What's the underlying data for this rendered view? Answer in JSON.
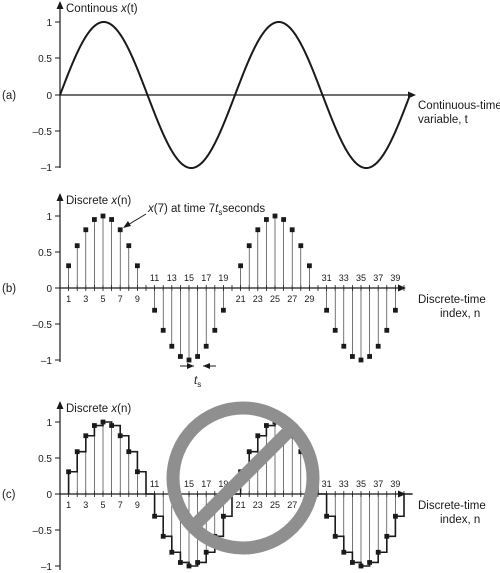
{
  "colors": {
    "ink": "#1a1a1a",
    "no_symbol": "#8f8f8f"
  },
  "panel_a": {
    "label": "(a)",
    "title_prefix": "Continous ",
    "title_var": "x",
    "title_arg": "(t)",
    "x_axis_line1": "Continuous-time",
    "x_axis_line2": "variable, t",
    "yticks": [
      "1",
      "0.5",
      "0",
      "–0.5",
      "–1"
    ]
  },
  "panel_b": {
    "label": "(b)",
    "title_prefix": "Discrete ",
    "title_var": "x",
    "title_arg": "(n)",
    "annotation": "x(7) at time 7ts seconds",
    "annotation_parts": [
      "x",
      "(7) at time 7",
      "t",
      "s",
      "seconds"
    ],
    "ts_label": "t",
    "ts_sub": "s",
    "x_axis_line1": "Discrete-time",
    "x_axis_line2": "index, n",
    "yticks": [
      "1",
      "0.5",
      "0",
      "–0.5",
      "–1"
    ],
    "index_labels_below": [
      "1",
      "3",
      "5",
      "7",
      "9",
      "21",
      "23",
      "25",
      "27",
      "29"
    ],
    "index_labels_above": [
      "11",
      "13",
      "15",
      "17",
      "19",
      "31",
      "33",
      "35",
      "37",
      "39"
    ]
  },
  "panel_c": {
    "label": "(c)",
    "title_prefix": "Discrete ",
    "title_var": "x",
    "title_arg": "(n)",
    "x_axis_line1": "Discrete-time",
    "x_axis_line2": "index, n",
    "yticks": [
      "1",
      "0.5",
      "0",
      "–0.5",
      "–1"
    ],
    "index_labels_below": [
      "1",
      "3",
      "5",
      "7",
      "9",
      "21",
      "23",
      "25",
      "27",
      "29"
    ],
    "index_labels_above": [
      "11",
      "13",
      "15",
      "17",
      "19",
      "31",
      "33",
      "35",
      "37",
      "39"
    ]
  },
  "signal": {
    "samples_per_cycle": 20,
    "sample_count": 40,
    "continuous_cycles": 2
  }
}
